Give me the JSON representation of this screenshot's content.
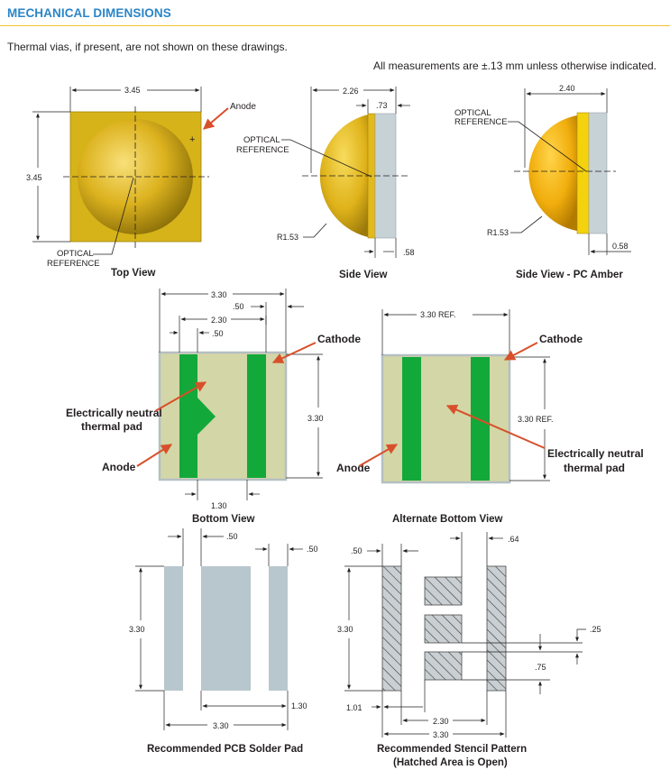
{
  "header": {
    "title": "MECHANICAL DIMENSIONS"
  },
  "intro": "Thermal vias, if present, are not shown on these drawings.",
  "tolerance_note": "All measurements are ±.13 mm unless otherwise indicated.",
  "colors": {
    "title": "#2b86c7",
    "rule": "#f1c232",
    "led_body": "#d6b318",
    "dome": "#e8bd20",
    "lens_side": "#c7d2d6",
    "pad_base": "#d3d6a6",
    "pad_green": "#13a83a",
    "pcb_pad": "#b8c7cd",
    "arrow": "#d8502b"
  },
  "top_view": {
    "caption": "Top View",
    "width": "3.45",
    "height": "3.45",
    "anode_label": "Anode",
    "plus": "+",
    "optical_ref_line1": "OPTICAL",
    "optical_ref_line2": "REFERENCE"
  },
  "side_view": {
    "caption": "Side View",
    "width": "2.26",
    "lens_thickness": ".73",
    "base": ".58",
    "radius": "R1.53",
    "optical_ref_line1": "OPTICAL",
    "optical_ref_line2": "REFERENCE"
  },
  "side_view_amber": {
    "caption": "Side View - PC Amber",
    "width": "2.40",
    "base": "0.58",
    "radius": "R1.53",
    "optical_ref_line1": "OPTICAL",
    "optical_ref_line2": "REFERENCE"
  },
  "bottom_view": {
    "caption": "Bottom View",
    "dim_330": "3.30",
    "dim_050": ".50",
    "dim_230": "2.30",
    "dim_050b": ".50",
    "dim_height": "3.30",
    "dim_130": "1.30",
    "cathode": "Cathode",
    "neutral_line1": "Electrically neutral",
    "neutral_line2": "thermal pad",
    "anode": "Anode"
  },
  "alt_bottom_view": {
    "caption": "Alternate Bottom View",
    "width_ref": "3.30 REF.",
    "height_ref": "3.30 REF.",
    "cathode": "Cathode",
    "neutral_line1": "Electrically neutral",
    "neutral_line2": "thermal pad",
    "anode": "Anode"
  },
  "pcb_pad": {
    "caption": "Recommended PCB Solder Pad",
    "dim_050a": ".50",
    "dim_050b": ".50",
    "height": "3.30",
    "dim_130": "1.30",
    "width": "3.30"
  },
  "stencil": {
    "caption_line1": "Recommended Stencil Pattern",
    "caption_line2": "(Hatched Area is Open)",
    "dim_050": ".50",
    "dim_064": ".64",
    "height": "3.30",
    "dim_025": ".25",
    "dim_075": ".75",
    "dim_101": "1.01",
    "dim_230": "2.30",
    "dim_330": "3.30"
  }
}
